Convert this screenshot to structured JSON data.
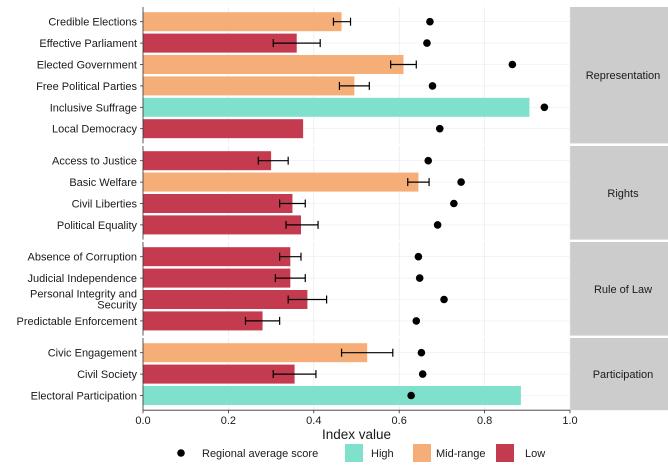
{
  "chart_data": {
    "type": "bar",
    "xlabel": "Index value",
    "xlim": [
      0,
      1
    ],
    "x_ticks": [
      "0.0",
      "0.2",
      "0.4",
      "0.6",
      "0.8",
      "1.0"
    ],
    "legend": {
      "position": "bottom",
      "point_label": "Regional average score",
      "classes": [
        {
          "label": "High",
          "color": "#7fe0cc"
        },
        {
          "label": "Mid-range",
          "color": "#f5ae78"
        },
        {
          "label": "Low",
          "color": "#c43a4f"
        }
      ]
    },
    "panels": [
      {
        "name": "Representation",
        "rows": [
          {
            "label": "Credible Elections",
            "value": 0.465,
            "class": "Mid-range",
            "err": [
              0.446,
              0.486
            ],
            "regional": 0.672
          },
          {
            "label": "Effective Parliament",
            "value": 0.36,
            "class": "Low",
            "err": [
              0.305,
              0.415
            ],
            "regional": 0.665
          },
          {
            "label": "Elected Government",
            "value": 0.61,
            "class": "Mid-range",
            "err": [
              0.58,
              0.64
            ],
            "regional": 0.865
          },
          {
            "label": "Free Political Parties",
            "value": 0.495,
            "class": "Mid-range",
            "err": [
              0.46,
              0.53
            ],
            "regional": 0.678
          },
          {
            "label": "Inclusive Suffrage",
            "value": 0.905,
            "class": "High",
            "err": null,
            "regional": 0.94
          },
          {
            "label": "Local Democracy",
            "value": 0.375,
            "class": "Low",
            "err": null,
            "regional": 0.695
          }
        ]
      },
      {
        "name": "Rights",
        "rows": [
          {
            "label": "Access to Justice",
            "value": 0.3,
            "class": "Low",
            "err": [
              0.27,
              0.34
            ],
            "regional": 0.668
          },
          {
            "label": "Basic Welfare",
            "value": 0.645,
            "class": "Mid-range",
            "err": [
              0.62,
              0.67
            ],
            "regional": 0.745
          },
          {
            "label": "Civil Liberties",
            "value": 0.35,
            "class": "Low",
            "err": [
              0.32,
              0.38
            ],
            "regional": 0.728
          },
          {
            "label": "Political Equality",
            "value": 0.37,
            "class": "Low",
            "err": [
              0.335,
              0.41
            ],
            "regional": 0.69
          }
        ]
      },
      {
        "name": "Rule of Law",
        "rows": [
          {
            "label": "Absence of Corruption",
            "value": 0.345,
            "class": "Low",
            "err": [
              0.32,
              0.37
            ],
            "regional": 0.645
          },
          {
            "label": "Judicial Independence",
            "value": 0.345,
            "class": "Low",
            "err": [
              0.31,
              0.38
            ],
            "regional": 0.648
          },
          {
            "label": [
              "Personal Integrity and",
              "Security"
            ],
            "value": 0.385,
            "class": "Low",
            "err": [
              0.34,
              0.43
            ],
            "regional": 0.705
          },
          {
            "label": "Predictable Enforcement",
            "value": 0.28,
            "class": "Low",
            "err": [
              0.24,
              0.32
            ],
            "regional": 0.64
          }
        ]
      },
      {
        "name": "Participation",
        "rows": [
          {
            "label": "Civic Engagement",
            "value": 0.525,
            "class": "Mid-range",
            "err": [
              0.465,
              0.585
            ],
            "regional": 0.652
          },
          {
            "label": "Civil Society",
            "value": 0.355,
            "class": "Low",
            "err": [
              0.305,
              0.405
            ],
            "regional": 0.655
          },
          {
            "label": "Electoral Participation",
            "value": 0.885,
            "class": "High",
            "err": null,
            "regional": 0.628
          }
        ]
      }
    ]
  }
}
